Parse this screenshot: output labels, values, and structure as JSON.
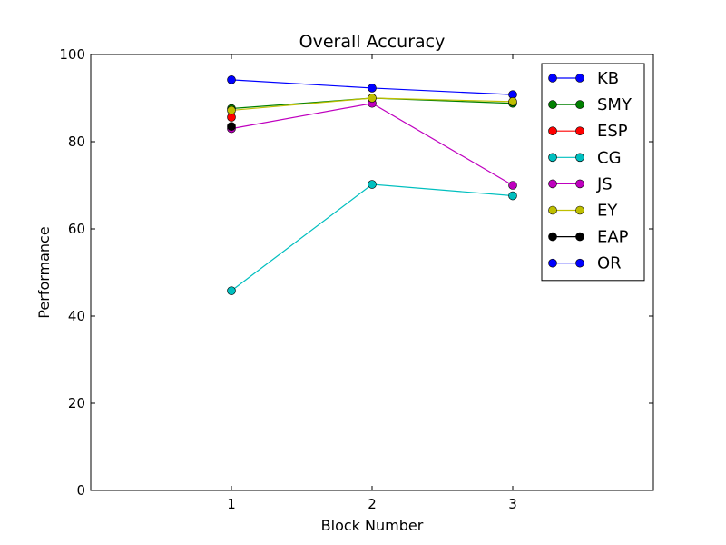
{
  "chart_data": {
    "type": "line",
    "title": "Overall Accuracy",
    "xlabel": "Block Number",
    "ylabel": "Performance",
    "xlim": [
      0,
      4
    ],
    "ylim": [
      0,
      100
    ],
    "x_ticks": [
      1,
      2,
      3
    ],
    "y_ticks": [
      0,
      20,
      40,
      60,
      80,
      100
    ],
    "grid": false,
    "legend_position": "top-right",
    "series": [
      {
        "name": "KB",
        "color": "#0000ff",
        "x": [
          1,
          2,
          3
        ],
        "values": [
          94.2,
          92.3,
          90.8
        ]
      },
      {
        "name": "SMY",
        "color": "#008000",
        "x": [
          1,
          2,
          3
        ],
        "values": [
          87.6,
          90.0,
          88.8
        ]
      },
      {
        "name": "ESP",
        "color": "#ff0000",
        "x": [
          1
        ],
        "values": [
          85.6
        ]
      },
      {
        "name": "CG",
        "color": "#00bfbf",
        "x": [
          1,
          2,
          3
        ],
        "values": [
          45.8,
          70.2,
          67.6
        ]
      },
      {
        "name": "JS",
        "color": "#bf00bf",
        "x": [
          1,
          2,
          3
        ],
        "values": [
          83.0,
          88.8,
          70.0
        ]
      },
      {
        "name": "EY",
        "color": "#bfbf00",
        "x": [
          1,
          2,
          3
        ],
        "values": [
          87.2,
          90.0,
          89.2
        ]
      },
      {
        "name": "EAP",
        "color": "#000000",
        "x": [
          1
        ],
        "values": [
          83.5
        ]
      },
      {
        "name": "OR",
        "color": "#0000ff",
        "x": [],
        "values": []
      }
    ]
  }
}
